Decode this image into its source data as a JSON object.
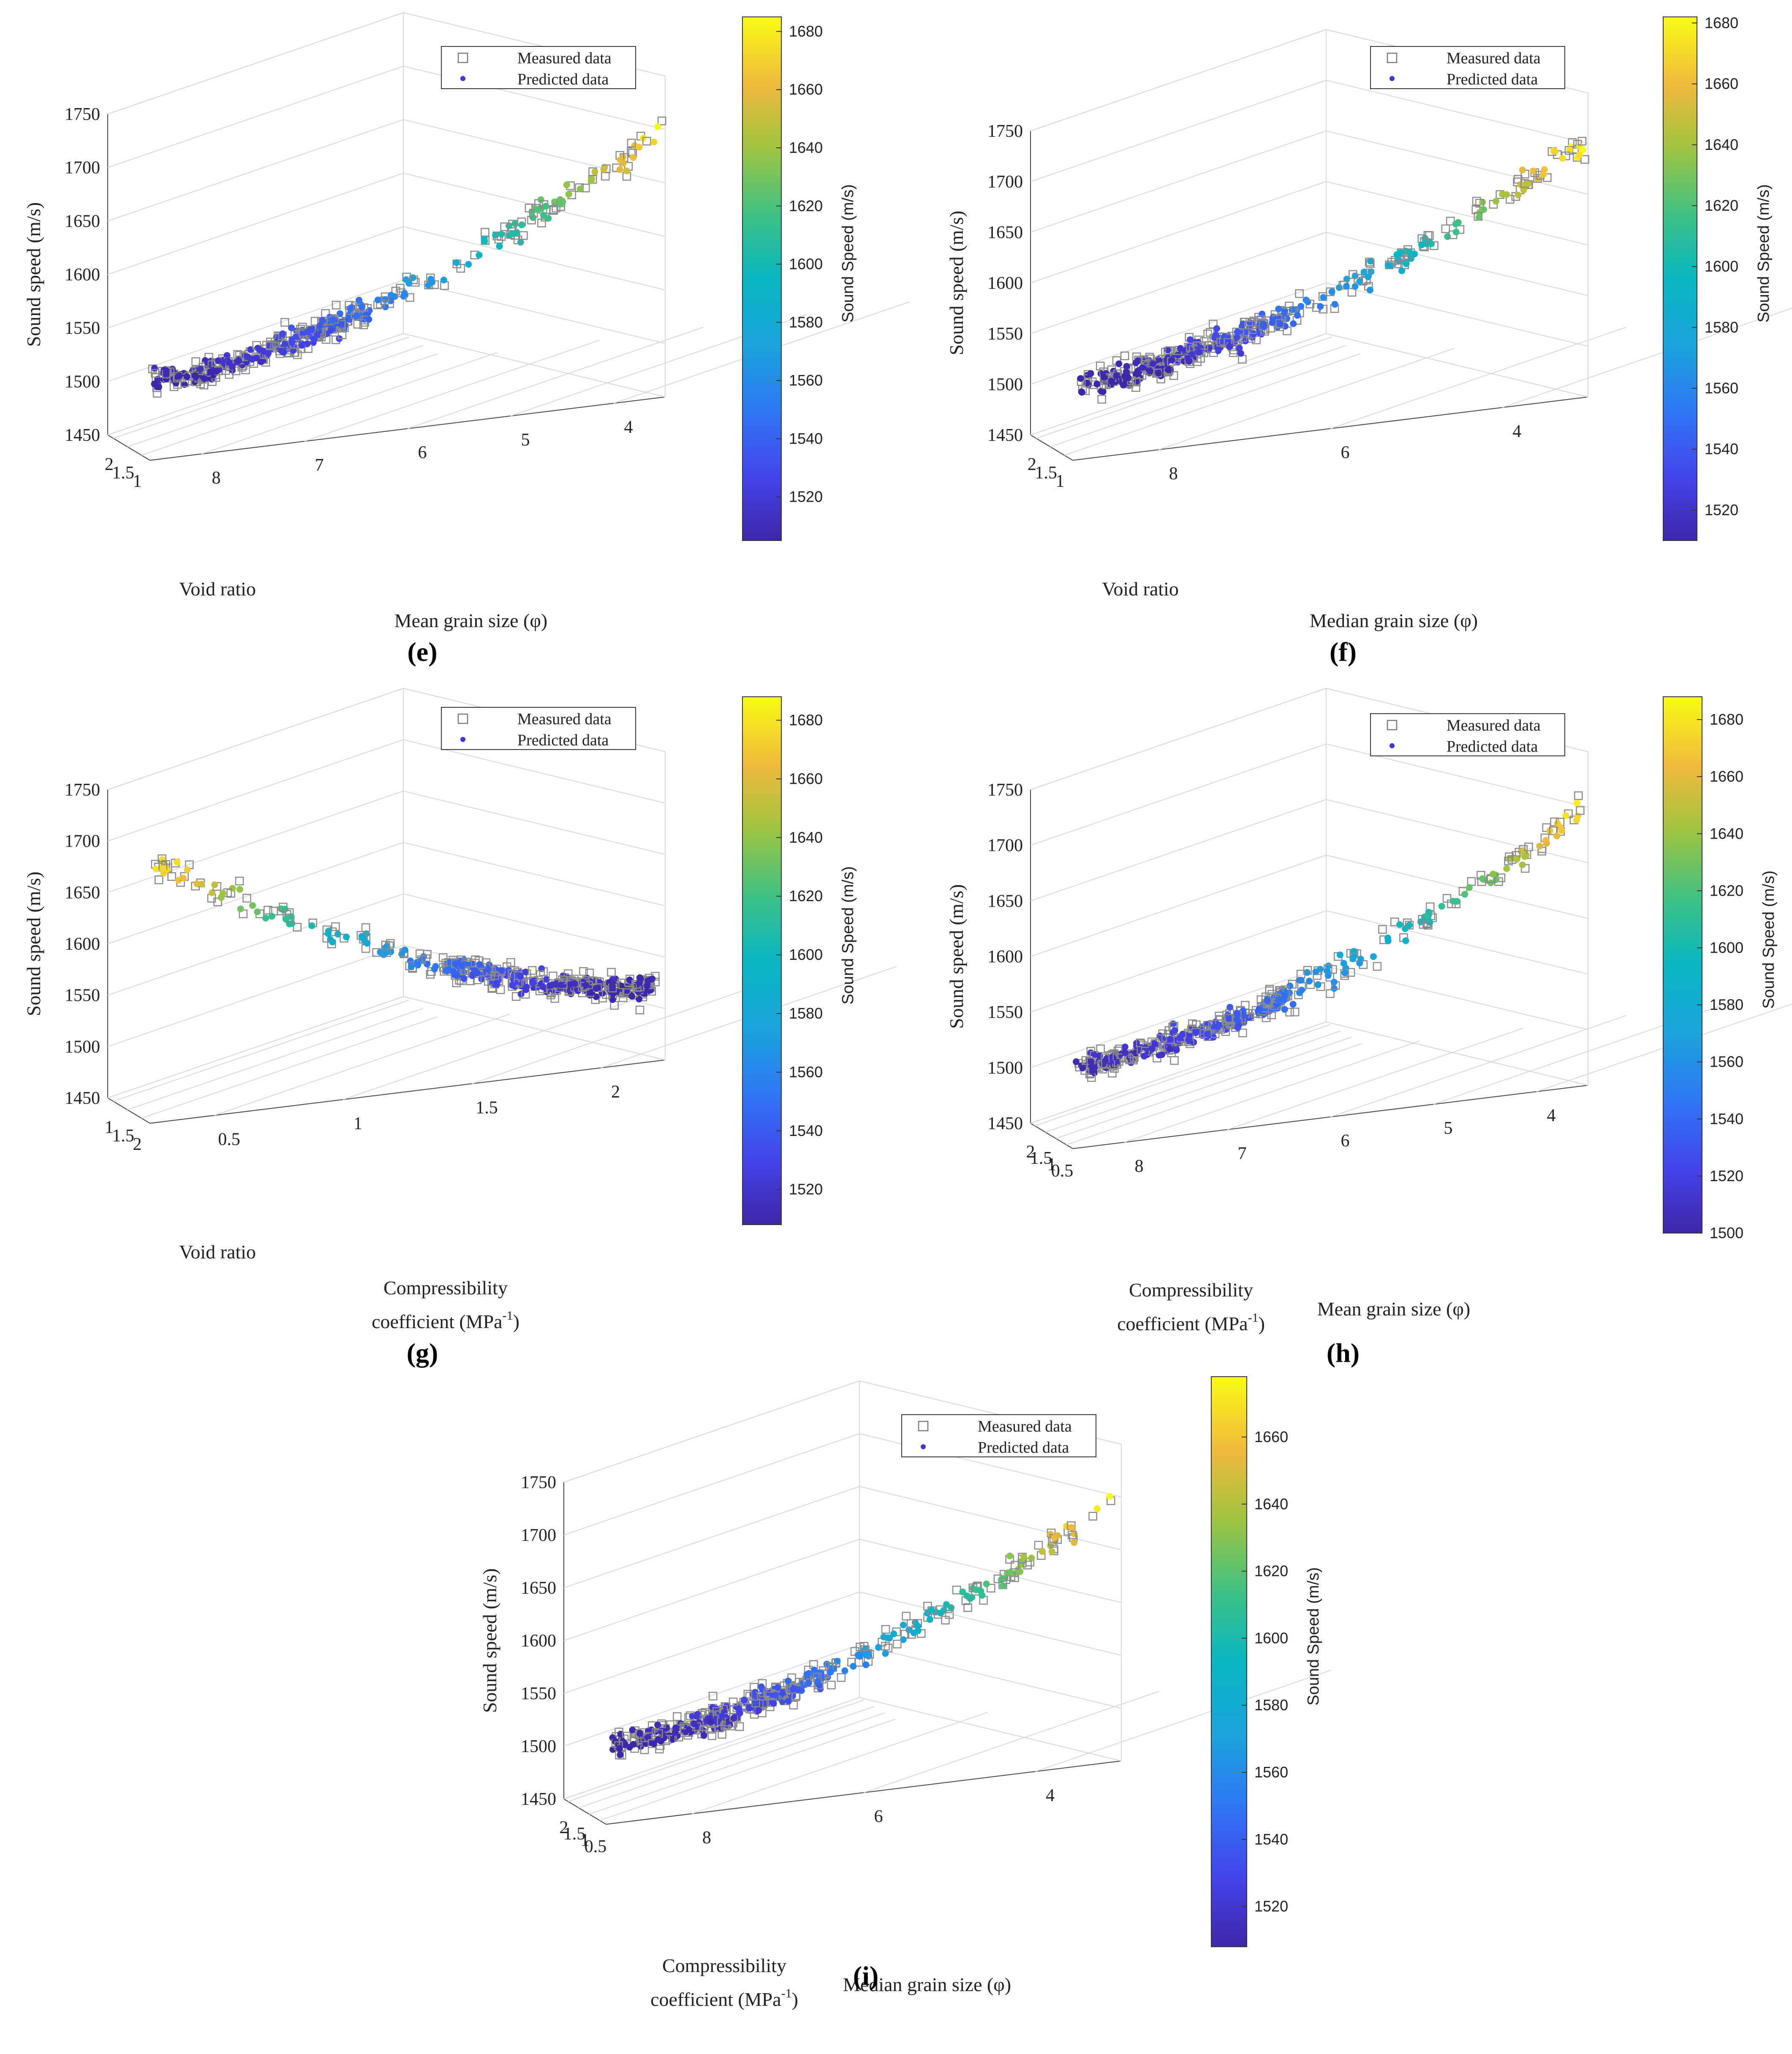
{
  "legend": {
    "measured": "Measured data",
    "predicted": "Predicted data"
  },
  "common": {
    "zlabel": "Sound speed (m/s)",
    "zticks": [
      "1450",
      "1500",
      "1550",
      "1600",
      "1650",
      "1700",
      "1750"
    ],
    "colorbar_label": "Sound Speed (m/s)"
  },
  "chart_data": [
    {
      "type": "scatter",
      "label": "(e)",
      "xlabel": "Void ratio",
      "ylabel": "Mean grain size (φ)",
      "zlabel": "Sound speed (m/s)",
      "xticks": [
        "2",
        "1.5",
        "1"
      ],
      "yticks": [
        "8",
        "7",
        "6",
        "5",
        "4"
      ],
      "colorbar": {
        "label": "Sound Speed (m/s)",
        "ticks": [
          "1520",
          "1540",
          "1560",
          "1580",
          "1600",
          "1620",
          "1640",
          "1660",
          "1680"
        ],
        "range": [
          1505,
          1685
        ]
      },
      "series": [
        {
          "name": "Measured data"
        },
        {
          "name": "Predicted data"
        }
      ]
    },
    {
      "type": "scatter",
      "label": "(f)",
      "xlabel": "Void ratio",
      "ylabel": "Median grain size (φ)",
      "zlabel": "Sound speed (m/s)",
      "xticks": [
        "2",
        "1.5",
        "1"
      ],
      "yticks": [
        "8",
        "6",
        "4"
      ],
      "colorbar": {
        "label": "Sound Speed (m/s)",
        "ticks": [
          "1520",
          "1540",
          "1560",
          "1580",
          "1600",
          "1620",
          "1640",
          "1660",
          "1680"
        ],
        "range": [
          1510,
          1682
        ]
      },
      "series": [
        {
          "name": "Measured data"
        },
        {
          "name": "Predicted data"
        }
      ]
    },
    {
      "type": "scatter",
      "label": "(g)",
      "xlabel": "Void ratio",
      "ylabel_line1": "Compressibility",
      "ylabel_line2": "coefficient (MPa",
      "ylabel_sup": "-1",
      "ylabel_end": ")",
      "xticks": [
        "1",
        "1.5",
        "2"
      ],
      "yticks": [
        "0.5",
        "1",
        "1.5",
        "2"
      ],
      "colorbar": {
        "label": "Sound Speed (m/s)",
        "ticks": [
          "1520",
          "1540",
          "1560",
          "1580",
          "1600",
          "1620",
          "1640",
          "1660",
          "1680"
        ],
        "range": [
          1508,
          1688
        ]
      },
      "series": [
        {
          "name": "Measured data"
        },
        {
          "name": "Predicted data"
        }
      ]
    },
    {
      "type": "scatter",
      "label": "(h)",
      "xlabel_line1": "Compressibility",
      "xlabel_line2": "coefficient (MPa",
      "xlabel_sup": "-1",
      "xlabel_end": ")",
      "ylabel": "Mean grain size (φ)",
      "xticks": [
        "2",
        "1.5",
        "1",
        "0.5"
      ],
      "yticks": [
        "8",
        "7",
        "6",
        "5",
        "4"
      ],
      "colorbar": {
        "label": "Sound Speed (m/s)",
        "ticks": [
          "1500",
          "1520",
          "1540",
          "1560",
          "1580",
          "1600",
          "1620",
          "1640",
          "1660",
          "1680"
        ],
        "range": [
          1500,
          1688
        ]
      },
      "series": [
        {
          "name": "Measured data"
        },
        {
          "name": "Predicted data"
        }
      ]
    },
    {
      "type": "scatter",
      "label": "(i)",
      "xlabel_line1": "Compressibility",
      "xlabel_line2": "coefficient (MPa",
      "xlabel_sup": "-1",
      "xlabel_end": ")",
      "ylabel": "Median grain size (φ)",
      "xticks": [
        "2",
        "1.5",
        "1",
        "0.5"
      ],
      "yticks": [
        "8",
        "6",
        "4"
      ],
      "colorbar": {
        "label": "Sound Speed (m/s)",
        "ticks": [
          "1520",
          "1540",
          "1560",
          "1580",
          "1600",
          "1620",
          "1640",
          "1660"
        ],
        "range": [
          1508,
          1678
        ]
      },
      "series": [
        {
          "name": "Measured data"
        },
        {
          "name": "Predicted data"
        }
      ]
    }
  ]
}
